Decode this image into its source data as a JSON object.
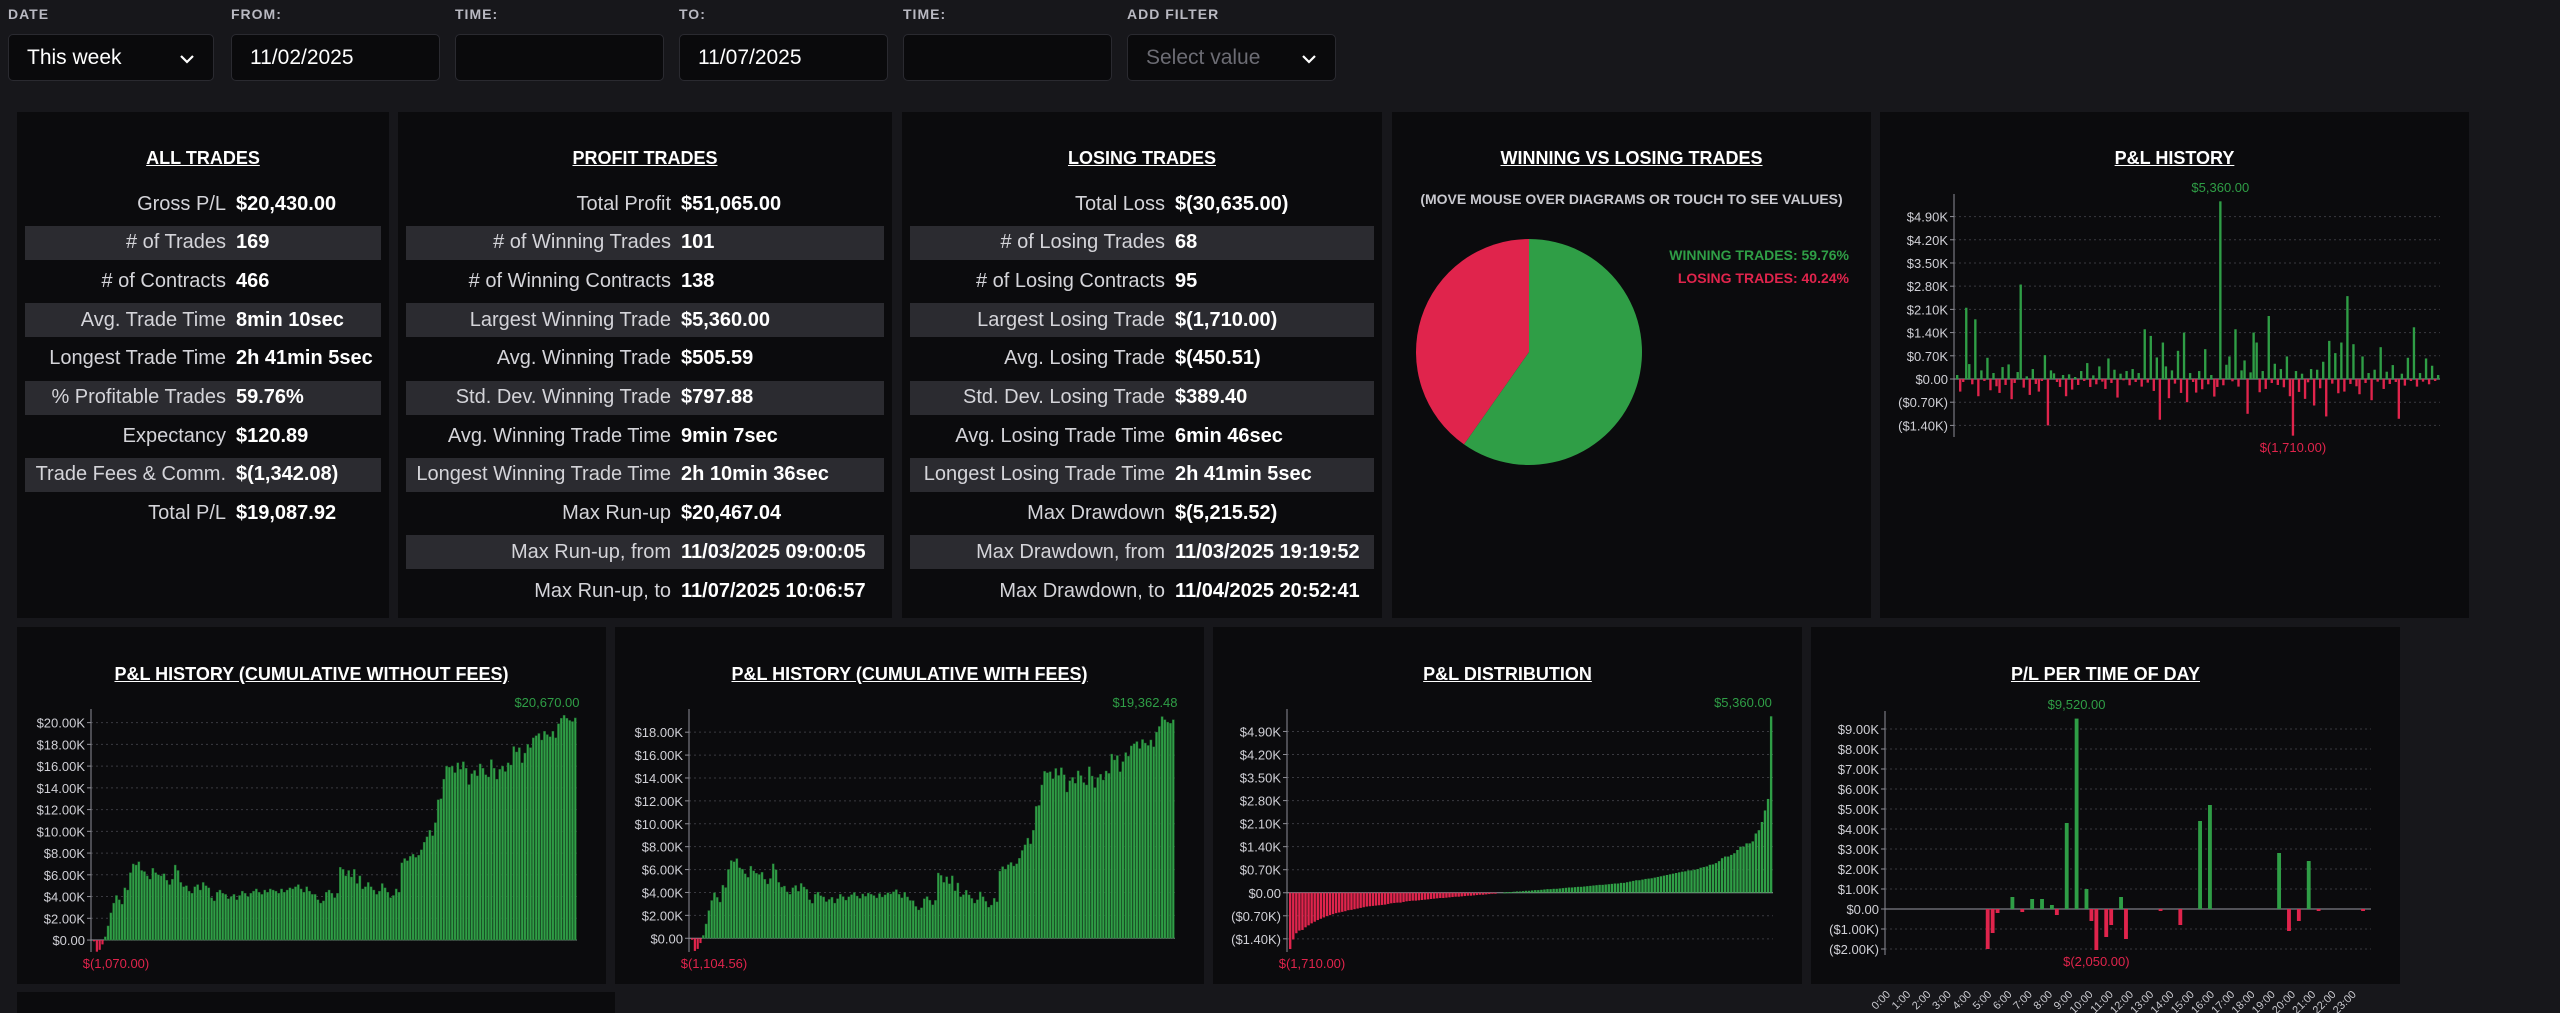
{
  "filters": {
    "date": {
      "label": "DATE",
      "value": "This week"
    },
    "from": {
      "label": "FROM:",
      "value": "11/02/2025"
    },
    "time1": {
      "label": "TIME:",
      "value": ""
    },
    "to": {
      "label": "TO:",
      "value": "11/07/2025"
    },
    "time2": {
      "label": "TIME:",
      "value": ""
    },
    "add_filter": {
      "label": "ADD FILTER",
      "placeholder": "Select value"
    }
  },
  "panels": {
    "all_trades": {
      "title": "ALL TRADES",
      "rows": [
        {
          "label": "Gross P/L",
          "value": "$20,430.00"
        },
        {
          "label": "# of Trades",
          "value": "169"
        },
        {
          "label": "# of Contracts",
          "value": "466"
        },
        {
          "label": "Avg. Trade Time",
          "value": "8min 10sec"
        },
        {
          "label": "Longest Trade Time",
          "value": "2h 41min 5sec"
        },
        {
          "label": "% Profitable Trades",
          "value": "59.76%"
        },
        {
          "label": "Expectancy",
          "value": "$120.89"
        },
        {
          "label": "Trade Fees & Comm.",
          "value": "$(1,342.08)"
        },
        {
          "label": "Total P/L",
          "value": "$19,087.92"
        }
      ]
    },
    "profit_trades": {
      "title": "PROFIT TRADES",
      "rows": [
        {
          "label": "Total Profit",
          "value": "$51,065.00"
        },
        {
          "label": "# of Winning Trades",
          "value": "101"
        },
        {
          "label": "# of Winning Contracts",
          "value": "138"
        },
        {
          "label": "Largest Winning Trade",
          "value": "$5,360.00"
        },
        {
          "label": "Avg. Winning Trade",
          "value": "$505.59"
        },
        {
          "label": "Std. Dev. Winning Trade",
          "value": "$797.88"
        },
        {
          "label": "Avg. Winning Trade Time",
          "value": "9min 7sec"
        },
        {
          "label": "Longest Winning Trade Time",
          "value": "2h 10min 36sec"
        },
        {
          "label": "Max Run-up",
          "value": "$20,467.04"
        },
        {
          "label": "Max Run-up, from",
          "value": "11/03/2025 09:00:05"
        },
        {
          "label": "Max Run-up, to",
          "value": "11/07/2025 10:06:57"
        }
      ]
    },
    "losing_trades": {
      "title": "LOSING TRADES",
      "rows": [
        {
          "label": "Total Loss",
          "value": "$(30,635.00)"
        },
        {
          "label": "# of Losing Trades",
          "value": "68"
        },
        {
          "label": "# of Losing Contracts",
          "value": "95"
        },
        {
          "label": "Largest Losing Trade",
          "value": "$(1,710.00)"
        },
        {
          "label": "Avg. Losing Trade",
          "value": "$(450.51)"
        },
        {
          "label": "Std. Dev. Losing Trade",
          "value": "$389.40"
        },
        {
          "label": "Avg. Losing Trade Time",
          "value": "6min 46sec"
        },
        {
          "label": "Longest Losing Trade Time",
          "value": "2h 41min 5sec"
        },
        {
          "label": "Max Drawdown",
          "value": "$(5,215.52)"
        },
        {
          "label": "Max Drawdown, from",
          "value": "11/03/2025 19:19:52"
        },
        {
          "label": "Max Drawdown, to",
          "value": "11/04/2025 20:52:41"
        }
      ]
    },
    "win_vs_loss": {
      "title": "WINNING VS LOSING TRADES",
      "hint": "(MOVE MOUSE OVER DIAGRAMS OR TOUCH TO SEE VALUES)",
      "legend_win": "WINNING TRADES: 59.76%",
      "legend_loss": "LOSING TRADES: 40.24%"
    }
  },
  "colors": {
    "win": "#2f9e46",
    "loss": "#e0244c",
    "panel": "#0b0b0d",
    "page": "#17171b"
  },
  "icons": {
    "dropdown": "chevron-down-icon"
  },
  "chart_data": [
    {
      "id": "pie",
      "type": "pie",
      "title": "WINNING VS LOSING TRADES",
      "slices": [
        {
          "name": "WINNING TRADES",
          "value": 59.76
        },
        {
          "name": "LOSING TRADES",
          "value": 40.24
        }
      ]
    },
    {
      "id": "pl_history",
      "type": "bar",
      "title": "P&L HISTORY",
      "ylim": [
        -1750,
        5400
      ],
      "y_ticks": [
        4900,
        4200,
        3500,
        2800,
        2100,
        1400,
        700,
        0,
        -700,
        -1400
      ],
      "y_tick_labels": [
        "$4.90K",
        "$4.20K",
        "$3.50K",
        "$2.80K",
        "$2.10K",
        "$1.40K",
        "$0.70K",
        "$0.00",
        "($0.70K)",
        "($1.40K)"
      ],
      "max_label": "$5,360.00",
      "min_label": "$(1,710.00)",
      "values": [
        120,
        -380,
        -90,
        2150,
        450,
        -160,
        1800,
        -520,
        260,
        -60,
        640,
        -340,
        180,
        -220,
        -420,
        360,
        -180,
        440,
        -610,
        -120,
        210,
        2850,
        -260,
        80,
        -480,
        300,
        -150,
        -380,
        -60,
        720,
        -1400,
        260,
        170,
        -90,
        -240,
        120,
        -520,
        140,
        -320,
        60,
        -180,
        240,
        -60,
        480,
        -240,
        110,
        -160,
        380,
        -80,
        -300,
        620,
        -120,
        280,
        -560,
        160,
        -40,
        240,
        -190,
        300,
        -90,
        180,
        -230,
        1500,
        -110,
        1300,
        -360,
        650,
        -1230,
        1100,
        380,
        -580,
        260,
        -140,
        850,
        -420,
        1400,
        -700,
        180,
        -90,
        -410,
        240,
        -310,
        900,
        -160,
        120,
        -530,
        -240,
        5360,
        -190,
        430,
        680,
        -70,
        1500,
        -230,
        260,
        560,
        -1050,
        200,
        1400,
        1100,
        -400,
        240,
        -300,
        1900,
        -120,
        460,
        -180,
        300,
        -250,
        680,
        -520,
        -1710,
        240,
        -390,
        160,
        -600,
        -100,
        300,
        -800,
        280,
        -280,
        520,
        -1130,
        1150,
        -140,
        780,
        -430,
        1100,
        -380,
        2500,
        -150,
        1050,
        -220,
        -460,
        680,
        -120,
        180,
        -640,
        280,
        -80,
        960,
        -300,
        220,
        -150,
        420,
        -90,
        -1200,
        160,
        -200,
        640,
        -60,
        1560,
        -230,
        180,
        -80,
        620,
        -160,
        400,
        -60,
        120
      ]
    },
    {
      "id": "cum_no_fees",
      "type": "bar",
      "title": "P&L HISTORY (CUMULATIVE WITHOUT FEES)",
      "ylim": [
        -1100,
        20700
      ],
      "y_ticks": [
        20000,
        18000,
        16000,
        14000,
        12000,
        10000,
        8000,
        6000,
        4000,
        2000,
        0
      ],
      "y_tick_labels": [
        "$20.00K",
        "$18.00K",
        "$16.00K",
        "$14.00K",
        "$12.00K",
        "$10.00K",
        "$8.00K",
        "$6.00K",
        "$4.00K",
        "$2.00K",
        "$0.00"
      ],
      "max_label": "$20,670.00",
      "min_label": "$(1,070.00)",
      "values": [
        -120,
        -1070,
        -900,
        -400,
        300,
        1300,
        2500,
        3400,
        4100,
        3700,
        3300,
        4800,
        4600,
        6200,
        7000,
        6900,
        7200,
        6400,
        6300,
        5900,
        5600,
        6600,
        6200,
        6000,
        5900,
        6100,
        5500,
        5100,
        5600,
        6900,
        6400,
        5300,
        4900,
        5000,
        4500,
        4300,
        4900,
        5100,
        4600,
        5300,
        5000,
        4800,
        3900,
        3600,
        4400,
        4600,
        4300,
        4200,
        3800,
        4000,
        4200,
        3700,
        4100,
        4500,
        4300,
        4000,
        4300,
        4500,
        4700,
        4400,
        4200,
        4600,
        4400,
        4700,
        4600,
        4500,
        4300,
        4700,
        4400,
        4600,
        4800,
        4700,
        4900,
        5100,
        4700,
        4400,
        4900,
        4500,
        4200,
        4200,
        3700,
        3400,
        3600,
        4400,
        4600,
        4300,
        3900,
        4300,
        6700,
        6500,
        5900,
        6400,
        5800,
        6500,
        5200,
        5900,
        4700,
        4900,
        5300,
        4900,
        4600,
        4200,
        4500,
        5200,
        4800,
        4400,
        3900,
        4100,
        4700,
        4400,
        7100,
        7500,
        7300,
        7700,
        7900,
        7600,
        7800,
        8300,
        9000,
        9500,
        10100,
        9600,
        10800,
        12900,
        13000,
        14800,
        16000,
        15900,
        16000,
        15400,
        16300,
        15700,
        16400,
        15800,
        14300,
        15300,
        15600,
        15100,
        16200,
        15800,
        15200,
        15000,
        16600,
        15800,
        14800,
        15700,
        16000,
        15500,
        16300,
        16100,
        17800,
        17300,
        17700,
        16300,
        17200,
        18000,
        17700,
        18600,
        18800,
        19000,
        18400,
        19200,
        18900,
        18700,
        19200,
        18600,
        19900,
        20400,
        20670,
        20400,
        20200,
        20100,
        20430
      ]
    },
    {
      "id": "cum_with_fees",
      "type": "bar",
      "title": "P&L HISTORY (CUMULATIVE WITH FEES)",
      "ylim": [
        -1200,
        19500
      ],
      "y_ticks": [
        18000,
        16000,
        14000,
        12000,
        10000,
        8000,
        6000,
        4000,
        2000,
        0
      ],
      "y_tick_labels": [
        "$18.00K",
        "$16.00K",
        "$14.00K",
        "$12.00K",
        "$10.00K",
        "$8.00K",
        "$6.00K",
        "$4.00K",
        "$2.00K",
        "$0.00"
      ],
      "max_label": "$19,362.48",
      "min_label": "$(1,104.56)",
      "values": [
        -130,
        -1104.56,
        -930,
        -420,
        250,
        1250,
        2420,
        3300,
        3980,
        3570,
        3160,
        4640,
        4430,
        6010,
        6790,
        6680,
        6960,
        6150,
        6040,
        5630,
        5320,
        6300,
        5890,
        5680,
        5570,
        5760,
        5150,
        4740,
        5220,
        6500,
        5990,
        4880,
        4470,
        4560,
        4050,
        3840,
        4420,
        4610,
        4100,
        4790,
        4480,
        4270,
        3360,
        3050,
        3840,
        4030,
        3720,
        3610,
        3200,
        3390,
        3580,
        3070,
        3460,
        3850,
        3640,
        3330,
        3620,
        3810,
        4000,
        3690,
        3480,
        3870,
        3660,
        3950,
        3840,
        3730,
        3520,
        3910,
        3600,
        3790,
        3980,
        3870,
        4060,
        4250,
        3840,
        3530,
        4020,
        3610,
        3300,
        3290,
        2780,
        2470,
        2660,
        3450,
        3640,
        3330,
        2920,
        3310,
        5700,
        5490,
        4880,
        5370,
        4760,
        5450,
        4140,
        4830,
        3620,
        3810,
        4200,
        3790,
        3480,
        3070,
        3360,
        4050,
        3630,
        3220,
        2710,
        2900,
        3490,
        3180,
        5870,
        6260,
        6040,
        6430,
        6620,
        6310,
        6500,
        6990,
        7670,
        8160,
        8750,
        8240,
        9430,
        11520,
        11600,
        13390,
        14580,
        14460,
        14550,
        13940,
        14830,
        14220,
        14900,
        14280,
        12770,
        13760,
        14050,
        13530,
        14620,
        14210,
        13600,
        13390,
        14980,
        14170,
        13160,
        14040,
        14330,
        13820,
        14610,
        14400,
        16090,
        15570,
        15960,
        14550,
        15430,
        16220,
        15910,
        16800,
        16990,
        17180,
        16570,
        17360,
        17050,
        16840,
        17320,
        16720,
        18010,
        18500,
        19362.48,
        19090,
        18880,
        18780,
        19087.92
      ]
    },
    {
      "id": "pl_distribution",
      "type": "bar",
      "title": "P&L DISTRIBUTION",
      "ylim": [
        -1800,
        5400
      ],
      "y_ticks": [
        4900,
        4200,
        3500,
        2800,
        2100,
        1400,
        700,
        0,
        -700,
        -1400
      ],
      "y_tick_labels": [
        "$4.90K",
        "$4.20K",
        "$3.50K",
        "$2.80K",
        "$2.10K",
        "$1.40K",
        "$0.70K",
        "$0.00",
        "($0.70K)",
        "($1.40K)"
      ],
      "max_label": "$5,360.00",
      "min_label": "$(1,710.00)",
      "values": [
        -1710,
        -1420,
        -1230,
        -1150,
        -1130,
        -1050,
        -990,
        -930,
        -880,
        -830,
        -790,
        -750,
        -710,
        -680,
        -650,
        -620,
        -600,
        -580,
        -560,
        -530,
        -520,
        -500,
        -480,
        -460,
        -440,
        -420,
        -410,
        -400,
        -390,
        -380,
        -370,
        -360,
        -340,
        -320,
        -310,
        -300,
        -300,
        -280,
        -260,
        -250,
        -240,
        -240,
        -230,
        -220,
        -210,
        -200,
        -190,
        -180,
        -170,
        -160,
        -160,
        -150,
        -140,
        -130,
        -120,
        -120,
        -110,
        -100,
        -90,
        -90,
        -80,
        -70,
        -60,
        -60,
        -50,
        -40,
        -30,
        -20,
        0,
        0,
        10,
        20,
        20,
        30,
        40,
        40,
        50,
        60,
        60,
        70,
        80,
        80,
        90,
        100,
        110,
        110,
        120,
        120,
        130,
        140,
        150,
        160,
        160,
        170,
        180,
        180,
        190,
        200,
        210,
        220,
        230,
        240,
        240,
        250,
        260,
        270,
        280,
        280,
        300,
        300,
        320,
        340,
        360,
        380,
        380,
        400,
        420,
        430,
        440,
        460,
        480,
        500,
        520,
        540,
        560,
        580,
        600,
        620,
        640,
        650,
        680,
        680,
        700,
        720,
        760,
        780,
        800,
        850,
        860,
        900,
        960,
        1050,
        1100,
        1100,
        1150,
        1200,
        1300,
        1400,
        1400,
        1500,
        1500,
        1560,
        1800,
        1900,
        2150,
        2500,
        2850,
        5360
      ]
    },
    {
      "id": "pl_time_of_day",
      "type": "bar",
      "title": "P/L PER TIME OF DAY",
      "ylim": [
        -2300,
        9600
      ],
      "y_ticks": [
        9000,
        8000,
        7000,
        6000,
        5000,
        4000,
        3000,
        2000,
        1000,
        0,
        -1000,
        -2000
      ],
      "y_tick_labels": [
        "$9.00K",
        "$8.00K",
        "$7.00K",
        "$6.00K",
        "$5.00K",
        "$4.00K",
        "$3.00K",
        "$2.00K",
        "$1.00K",
        "$0.00",
        "($1.00K)",
        "($2.00K)"
      ],
      "x_tick_labels": [
        "0:00",
        "1:00",
        "2:00",
        "3:00",
        "4:00",
        "5:00",
        "6:00",
        "7:00",
        "8:00",
        "9:00",
        "10:00",
        "11:00",
        "12:00",
        "13:00",
        "14:00",
        "15:00",
        "16:00",
        "17:00",
        "18:00",
        "19:00",
        "20:00",
        "21:00",
        "22:00",
        "23:00"
      ],
      "max_label": "$9,520.00",
      "min_label": "$(2,050.00)",
      "values": [
        0,
        0,
        0,
        0,
        0,
        0,
        0,
        0,
        0,
        0,
        0,
        0,
        0,
        0,
        0,
        0,
        0,
        0,
        0,
        0,
        -2000,
        -1200,
        -200,
        0,
        0,
        600,
        0,
        -150,
        0,
        500,
        0,
        500,
        0,
        200,
        -300,
        0,
        4300,
        0,
        9520,
        0,
        1000,
        -600,
        -2050,
        0,
        -1400,
        -800,
        0,
        600,
        -1500,
        0,
        0,
        0,
        0,
        0,
        0,
        -100,
        0,
        0,
        0,
        -800,
        0,
        0,
        0,
        4400,
        0,
        5200,
        0,
        0,
        0,
        0,
        0,
        0,
        0,
        0,
        0,
        0,
        0,
        0,
        0,
        2800,
        0,
        -1100,
        0,
        -600,
        0,
        2400,
        0,
        -100,
        0,
        0,
        0,
        0,
        0,
        0,
        0,
        0,
        -100,
        0
      ]
    }
  ],
  "chart_titles": {
    "pl_history": "P&L HISTORY",
    "cum_no_fees": "P&L HISTORY (CUMULATIVE WITHOUT FEES)",
    "cum_with_fees": "P&L HISTORY (CUMULATIVE WITH FEES)",
    "pl_distribution": "P&L DISTRIBUTION",
    "pl_time_of_day": "P/L PER TIME OF DAY"
  }
}
